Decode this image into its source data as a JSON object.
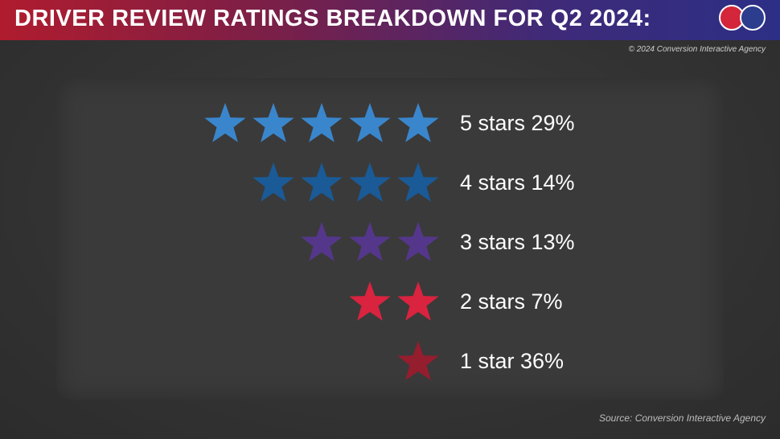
{
  "header": {
    "title": "DRIVER REVIEW RATINGS BREAKDOWN FOR Q2 2024:",
    "copyright": "© 2024 Conversion Interactive Agency"
  },
  "footer": {
    "source": "Source: Conversion Interactive Agency"
  },
  "colors": {
    "header_red": "#b01c2e",
    "header_blue": "#2c2f86",
    "star5": "#3a86cc",
    "star4": "#1a5a96",
    "star3": "#54378a",
    "star2": "#d9233f",
    "star1": "#941d2e"
  },
  "chart_data": {
    "type": "bar",
    "categories": [
      "5 stars",
      "4 stars",
      "3 stars",
      "2 stars",
      "1 star"
    ],
    "values": [
      29,
      14,
      13,
      7,
      36
    ],
    "labels": [
      "5 stars 29%",
      "4 stars 14%",
      "3 stars 13%",
      "2 stars 7%",
      "1 star 36%"
    ],
    "star_counts": [
      5,
      4,
      3,
      2,
      1
    ],
    "star_colors": [
      "#3a86cc",
      "#1a5a96",
      "#54378a",
      "#d9233f",
      "#941d2e"
    ],
    "unit": "%"
  }
}
